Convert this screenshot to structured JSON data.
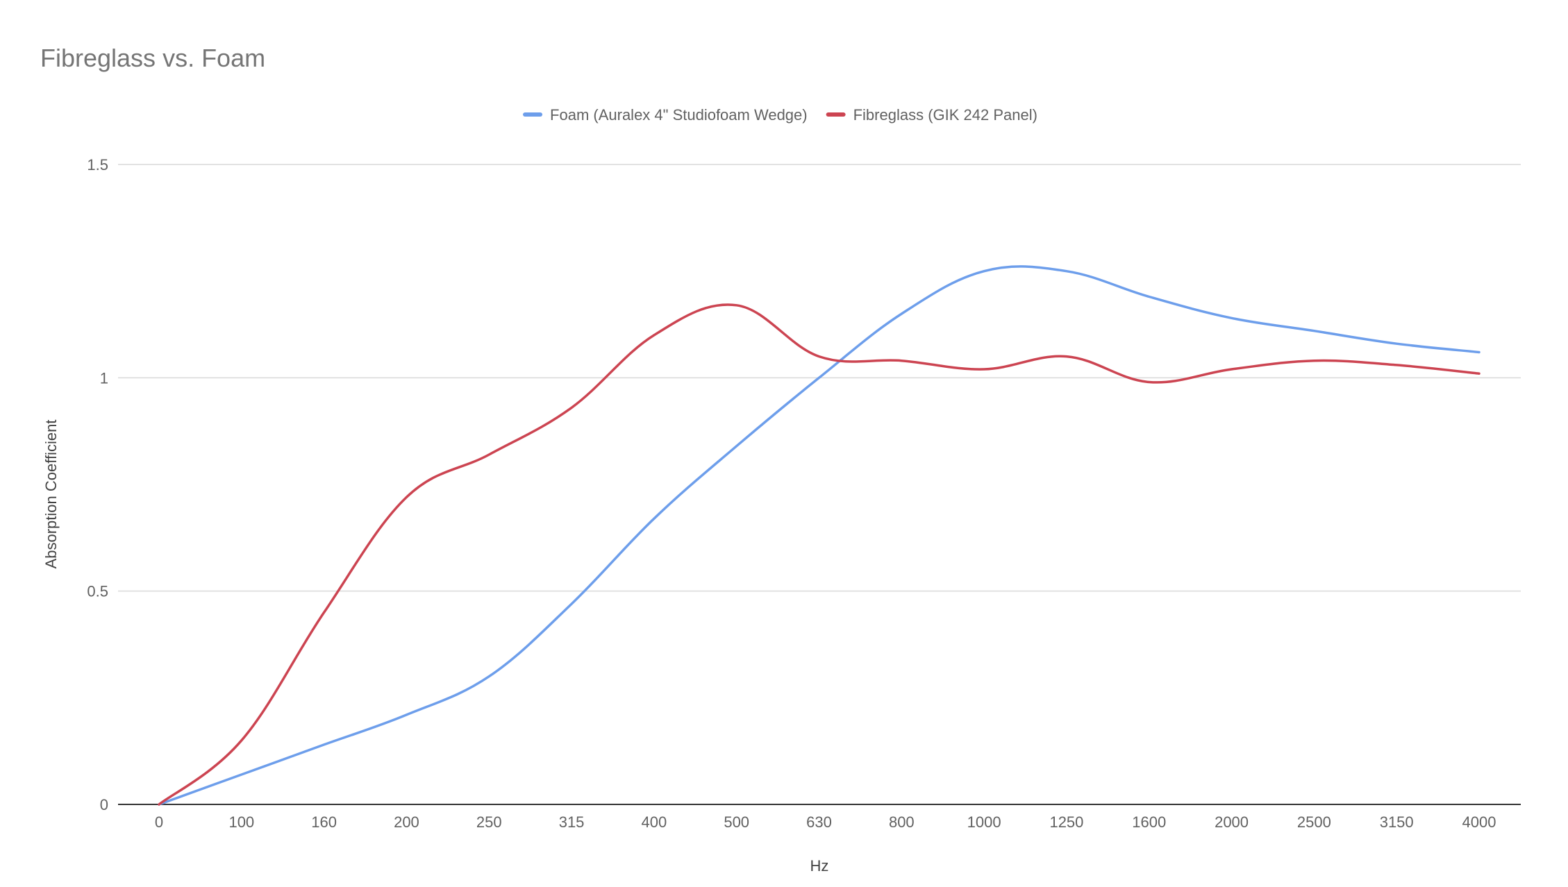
{
  "chart_data": {
    "type": "line",
    "title": "Fibreglass vs. Foam",
    "xlabel": "Hz",
    "ylabel": "Absorption Coefficient",
    "ylim": [
      0,
      1.5
    ],
    "yticks": [
      "0",
      "0.5",
      "1",
      "1.5"
    ],
    "grid": true,
    "legend_position": "top",
    "categories": [
      "0",
      "100",
      "160",
      "200",
      "250",
      "315",
      "400",
      "500",
      "630",
      "800",
      "1000",
      "1250",
      "1600",
      "2000",
      "2500",
      "3150",
      "4000"
    ],
    "series": [
      {
        "name": "Foam (Auralex 4\" Studiofoam Wedge)",
        "color": "#6d9eeb",
        "values": [
          0,
          0.07,
          0.14,
          0.21,
          0.3,
          0.47,
          0.67,
          0.84,
          1.0,
          1.15,
          1.25,
          1.25,
          1.19,
          1.14,
          1.11,
          1.08,
          1.06
        ]
      },
      {
        "name": "Fibreglass (GIK 242 Panel)",
        "color": "#cc4451",
        "values": [
          0,
          0.15,
          0.45,
          0.72,
          0.82,
          0.93,
          1.1,
          1.17,
          1.05,
          1.04,
          1.02,
          1.05,
          0.99,
          1.02,
          1.04,
          1.03,
          1.01
        ]
      }
    ]
  }
}
